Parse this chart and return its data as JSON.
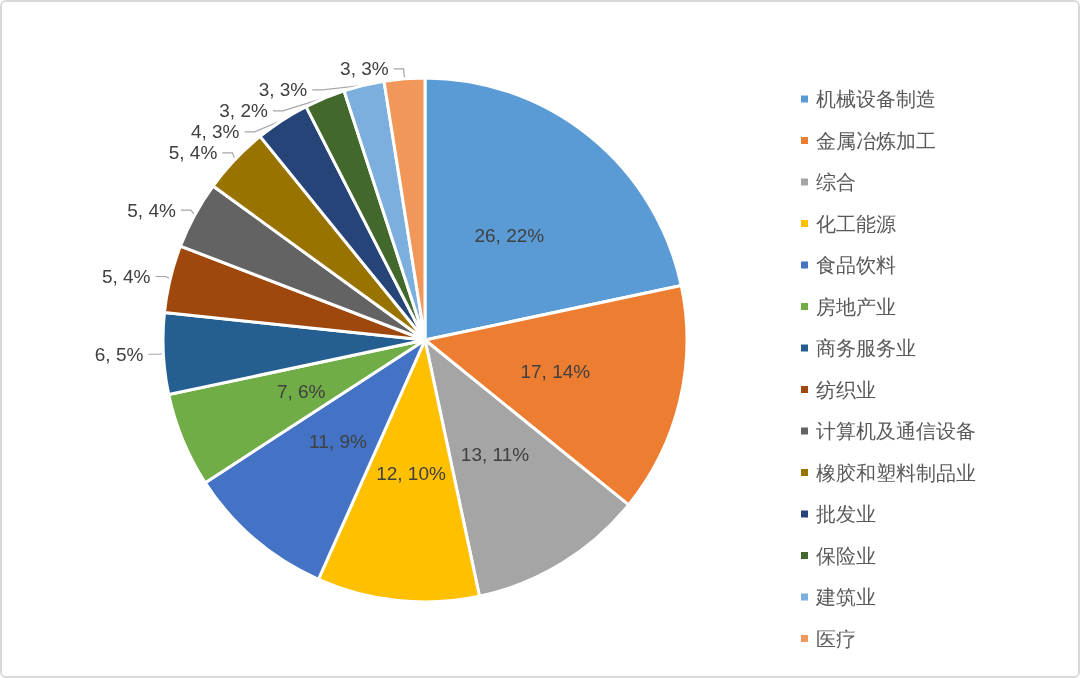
{
  "chart_data": {
    "type": "pie",
    "categories": [
      "机械设备制造",
      "金属冶炼加工",
      "综合",
      "化工能源",
      "食品饮料",
      "房地产业",
      "商务服务业",
      "纺织业",
      "计算机及通信设备",
      "橡胶和塑料制品业",
      "批发业",
      "保险业",
      "建筑业",
      "医疗"
    ],
    "values": [
      26,
      17,
      13,
      12,
      11,
      7,
      6,
      5,
      5,
      5,
      4,
      3,
      3,
      3
    ],
    "colors": [
      "#5b9bd5",
      "#ed7d31",
      "#a5a5a5",
      "#ffc000",
      "#4472c4",
      "#70ad47",
      "#255e91",
      "#9e480e",
      "#636363",
      "#997300",
      "#264478",
      "#43682b",
      "#7cafdd",
      "#f1975a"
    ],
    "value_labels": [
      "26, 22%",
      "17, 14%",
      "13, 11%",
      "12, 10%",
      "11, 9%",
      "7, 6%",
      "6, 5%",
      "5, 4%",
      "5, 4%",
      "5, 4%",
      "4, 3%",
      "3, 2%",
      "3, 3%",
      "3, 3%"
    ],
    "legend": "right"
  }
}
